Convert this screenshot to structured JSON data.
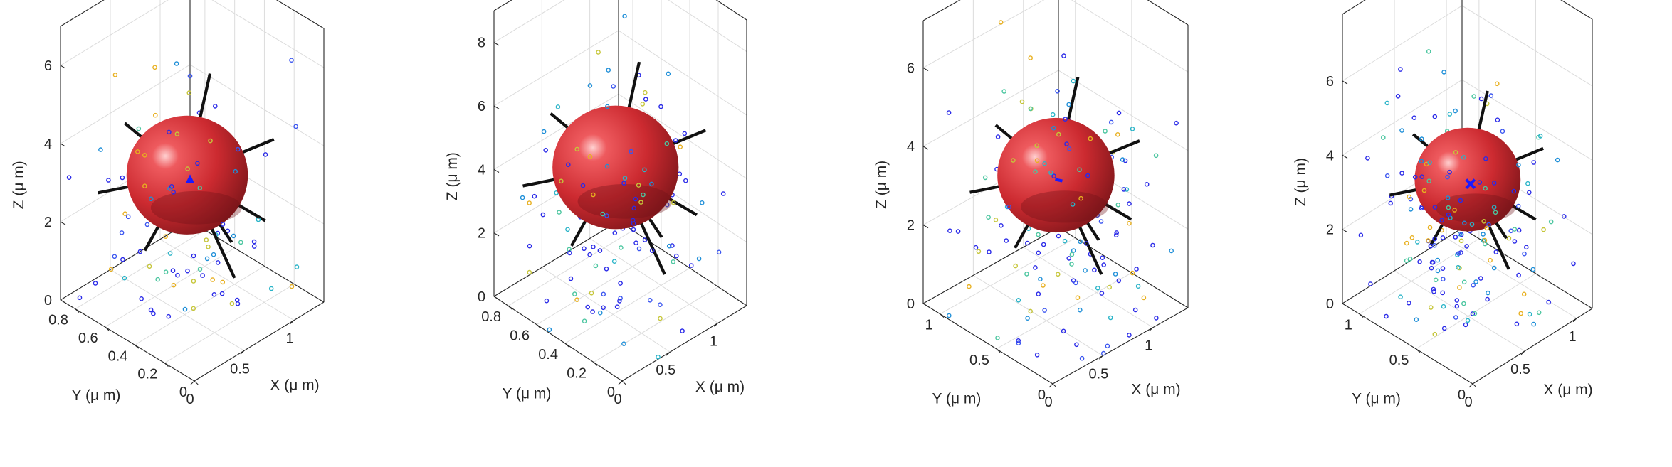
{
  "figure": {
    "description_free": true,
    "panel_count": 4
  },
  "chart_data": [
    {
      "type": "scatter",
      "subtype": "3d-scatter-with-sphere",
      "xlabel": "X (μ m)",
      "ylabel": "Y (μ m)",
      "zlabel": "Z (μ m)",
      "xlim": [
        0,
        1.3
      ],
      "ylim": [
        0,
        0.9
      ],
      "zlim": [
        0,
        7
      ],
      "xticks": [
        "0",
        "0.5",
        "1"
      ],
      "xtick_values": [
        0,
        0.5,
        1
      ],
      "yticks": [
        "0",
        "0.2",
        "0.4",
        "0.6",
        "0.8"
      ],
      "ytick_values": [
        0,
        0.2,
        0.4,
        0.6,
        0.8
      ],
      "zticks": [
        "0",
        "2",
        "4",
        "6"
      ],
      "ztick_values": [
        0,
        2,
        4,
        6
      ],
      "sphere": {
        "center": [
          0.6,
          0.45,
          3.3
        ],
        "radius_z": 2.5,
        "color": "#c0242a"
      },
      "centroid_marker": {
        "symbol": "triangle",
        "color": "#1a1aff"
      },
      "seed": 11,
      "n_points": 120
    },
    {
      "type": "scatter",
      "subtype": "3d-scatter-with-sphere",
      "xlabel": "X (μ m)",
      "ylabel": "Y (μ m)",
      "zlabel": "Z (μ m)",
      "xlim": [
        0,
        1.3
      ],
      "ylim": [
        0,
        0.9
      ],
      "zlim": [
        0,
        9
      ],
      "xticks": [
        "0",
        "0.5",
        "1"
      ],
      "xtick_values": [
        0,
        0.5,
        1
      ],
      "yticks": [
        "0",
        "0.2",
        "0.4",
        "0.6",
        "0.8"
      ],
      "ytick_values": [
        0,
        0.2,
        0.4,
        0.6,
        0.8
      ],
      "zticks": [
        "0",
        "2",
        "4",
        "6",
        "8"
      ],
      "ztick_values": [
        0,
        2,
        4,
        6,
        8
      ],
      "sphere": {
        "center": [
          0.6,
          0.45,
          4.3
        ],
        "radius_z": 3.2,
        "color": "#c0242a"
      },
      "centroid_marker": {
        "symbol": "none",
        "color": "#1a1aff"
      },
      "seed": 23,
      "n_points": 150
    },
    {
      "type": "scatter",
      "subtype": "3d-scatter-with-sphere",
      "xlabel": "X (μ m)",
      "ylabel": "Y (μ m)",
      "zlabel": "Z (μ m)",
      "xlim": [
        0,
        1.35
      ],
      "ylim": [
        0,
        1.15
      ],
      "zlim": [
        0,
        7.2
      ],
      "xticks": [
        "0",
        "0.5",
        "1"
      ],
      "xtick_values": [
        0,
        0.5,
        1
      ],
      "yticks": [
        "0",
        "0.5",
        "1"
      ],
      "ytick_values": [
        0,
        0.5,
        1
      ],
      "zticks": [
        "0",
        "2",
        "4",
        "6"
      ],
      "ztick_values": [
        0,
        2,
        4,
        6
      ],
      "sphere": {
        "center": [
          0.65,
          0.55,
          3.4
        ],
        "radius_z": 2.4,
        "color": "#c0242a"
      },
      "centroid_marker": {
        "symbol": "dash",
        "color": "#1a1aff"
      },
      "seed": 37,
      "n_points": 160
    },
    {
      "type": "scatter",
      "subtype": "3d-scatter-with-sphere",
      "xlabel": "X (μ m)",
      "ylabel": "Y (μ m)",
      "zlabel": "Z (μ m)",
      "xlim": [
        0,
        1.15
      ],
      "ylim": [
        0,
        1.15
      ],
      "zlim": [
        0,
        7.8
      ],
      "xticks": [
        "0",
        "0.5",
        "1"
      ],
      "xtick_values": [
        0,
        0.5,
        1
      ],
      "yticks": [
        "0",
        "0.5",
        "1"
      ],
      "ytick_values": [
        0,
        0.5,
        1
      ],
      "zticks": [
        "0",
        "2",
        "4",
        "6"
      ],
      "ztick_values": [
        0,
        2,
        4,
        6
      ],
      "sphere": {
        "center": [
          0.55,
          0.55,
          3.5
        ],
        "radius_z": 2.3,
        "color": "#c0242a"
      },
      "centroid_marker": {
        "symbol": "cross",
        "color": "#1a1aff"
      },
      "seed": 53,
      "n_points": 190
    }
  ]
}
